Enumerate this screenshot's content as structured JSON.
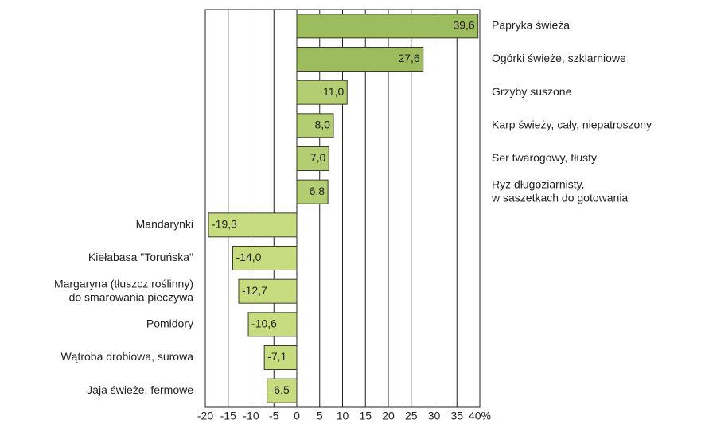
{
  "chart_data": {
    "type": "bar",
    "orientation": "horizontal",
    "categories": [
      "Papryka świeża",
      "Ogórki świeże, szklarniowe",
      "Grzyby suszone",
      "Karp świeży, cały, niepatroszony",
      "Ser twarogowy, tłusty",
      "Ryż długoziarnisty,\nw saszetkach do gotowania",
      "Mandarynki",
      "Kiełabasa \"Toruńska\"",
      "Margaryna (tłuszcz roślinny)\ndo smarowania pieczywa",
      "Pomidory",
      "Wątroba drobiowa, surowa",
      "Jaja świeże, fermowe"
    ],
    "values": [
      39.6,
      27.6,
      11.0,
      8.0,
      7.0,
      6.8,
      -19.3,
      -14.0,
      -12.7,
      -10.6,
      -7.1,
      -6.5
    ],
    "value_labels": [
      "39,6",
      "27,6",
      "11,0",
      "8,0",
      "7,0",
      "6,8",
      "-19,3",
      "-14,0",
      "-12,7",
      "-10,6",
      "-7,1",
      "-6,5"
    ],
    "colors": [
      "#9dbc5e",
      "#9dbc5e",
      "#b3cd72",
      "#b3cd72",
      "#b3cd72",
      "#b3cd72",
      "#c6dc7e",
      "#c6dc7e",
      "#c6dc7e",
      "#c6dc7e",
      "#c6dc7e",
      "#c6dc7e"
    ],
    "xlim": [
      -20,
      40
    ],
    "xticks": [
      -20,
      -15,
      -10,
      -5,
      0,
      5,
      10,
      15,
      20,
      25,
      30,
      35,
      {
        "value": 40,
        "label": "40%"
      }
    ],
    "grid": true
  }
}
